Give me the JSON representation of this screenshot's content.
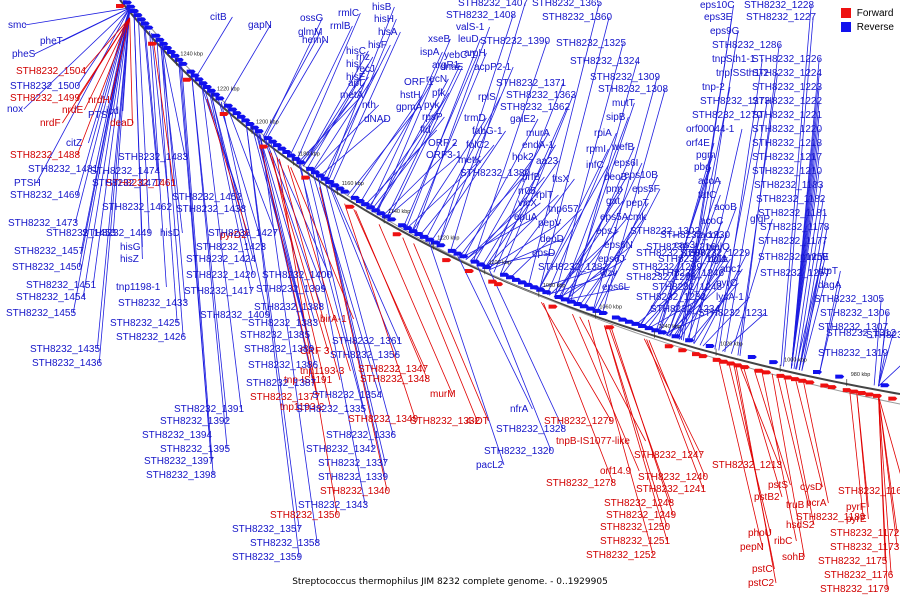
{
  "caption": "Streptococcus thermophilus JIM 8232 complete genome. - 0..1929905",
  "legend": {
    "forward_label": "Forward",
    "reverse_label": "Reverse",
    "forward_color": "#ee1111",
    "reverse_color": "#1111ee"
  },
  "scale_labels": [
    "1240 kbp",
    "1220 kbp",
    "1200 kbp",
    "1180 kbp",
    "1160 kbp",
    "1140 kbp",
    "1120 kbp",
    "1100 kbp",
    "1080 kbp",
    "1060 kbp",
    "1040 kbp",
    "1020 kbp",
    "1000 kbp",
    "980 kbp"
  ],
  "forward_genes": [
    "STH8232_1504",
    "STH8232_1499",
    "nrdH",
    "nrdE",
    "nrdF",
    "deaD",
    "STH8232_1488",
    "STH8232_1461",
    "pyrD2",
    "birA-1",
    "ORF 3",
    "tnp1193-3",
    "tnp-IS1191",
    "STH8232_1377",
    "tnp1193-2",
    "STH8232_1349",
    "STH8232_1347",
    "STH8232_1348",
    "murM",
    "STH8232_1332",
    "STH8232_1340",
    "STH8232_1350",
    "4-OT",
    "STH8232_1279",
    "tnpB-IS1077-like",
    "orf14.9",
    "STH8232_1278",
    "STH8232_1247",
    "STH8232_1240",
    "STH8232_1241",
    "STH8232_1248",
    "STH8232_1249",
    "STH8232_1250",
    "STH8232_1251",
    "STH8232_1252",
    "STH8232_1213",
    "pstS",
    "pstB2",
    "cysD",
    "truB",
    "pcrA",
    "phoU",
    "hsdS2",
    "ribC",
    "STH8232_1189",
    "pepN",
    "sohB",
    "pstC",
    "pstC2",
    "STH8232_1168",
    "pyrF",
    "pyrE",
    "STH8232_1172",
    "STH8232_1173",
    "STH8232_1175",
    "STH8232_1176",
    "STH8232_1179"
  ],
  "reverse_genes": [
    "smc",
    "pheT",
    "pheS",
    "STH8232_1500",
    "nox",
    "icd",
    "PTSI",
    "citZ",
    "STH8232_1481",
    "PTSH",
    "STH8232_1483",
    "STH8232_1474",
    "STH8232_1469",
    "STH8232_1477",
    "STH8232_1452",
    "STH8232_1462",
    "STH8232_1473",
    "STH8232_1438",
    "STH8232_1449",
    "STH8232_1453",
    "STH8232_1427",
    "hisD",
    "hisG",
    "STH8232_1457",
    "STH8232_1423",
    "hisZ",
    "STH8232_1424",
    "STH8232_1450",
    "STH8232_1451",
    "tnp1198-1",
    "STH8232_1420",
    "STH8232_1400",
    "STH8232_1454",
    "STH8232_1433",
    "STH8232_1417",
    "STH8232_1399",
    "STH8232_1455",
    "STH8232_1409",
    "STH8232_1388",
    "STH8232_1425",
    "STH8232_1383",
    "STH8232_1426",
    "STH8232_1385",
    "STH8232_1435",
    "STH8232_1389",
    "STH8232_1436",
    "STH8232_1386",
    "STH8232_1361",
    "STH8232_1356",
    "STH8232_1387",
    "STH8232_1354",
    "STH8232_1391",
    "STH8232_1335",
    "STH8232_1392",
    "STH8232_1336",
    "STH8232_1394",
    "STH8232_1342",
    "STH8232_1395",
    "STH8232_1397",
    "STH8232_1337",
    "STH8232_1398",
    "STH8232_1339",
    "STH8232_1343",
    "STH8232_1357",
    "STH8232_1358",
    "STH8232_1359",
    "citB",
    "gapN",
    "ossG",
    "glmM",
    "rmlC",
    "rmlB",
    "hemN",
    "hisB",
    "hisH",
    "hisA",
    "hisF",
    "hisC",
    "hisI",
    "hisE",
    "rnz",
    "recJ",
    "apt",
    "metA",
    "nth",
    "xseB",
    "ispA",
    "argR1",
    "recN",
    "ORF 1",
    "hstH",
    "gpmA",
    "dNAD",
    "valS-1",
    "leuD",
    "yebC-1",
    "dnaE",
    "pfk",
    "pyk",
    "rpsP",
    "fld",
    "ORF 2",
    "ORF3-1",
    "STH8232_1407",
    "STH8232_1408",
    "STH8232_1390",
    "aroH",
    "acpP2-1",
    "rplS",
    "trmD",
    "fabG-1",
    "folC2",
    "metK",
    "STH8232_1380",
    "STH8232_1371",
    "STH8232_1363",
    "STH8232_1362",
    "galE2",
    "murA",
    "endA-1",
    "hpk2",
    "aa23",
    "prfB",
    "rr05",
    "vicX",
    "epuA",
    "ftsX",
    "rplT",
    "tnp657",
    "pepV",
    "deoD",
    "epsD",
    "STH8232_1382",
    "STH8232_1365",
    "STH8232_1360",
    "STH8232_1325",
    "STH8232_1324",
    "STH8232_1309",
    "STH8232_1308",
    "mutT",
    "sipB",
    "rpiA",
    "rpmI",
    "infC",
    "deoB",
    "pnp",
    "gat",
    "eps5A",
    "epsJ",
    "eps6N",
    "eps6J",
    "wzv",
    "eps6L",
    "eps6I",
    "wefB",
    "eps10B",
    "eps5F",
    "pepT",
    "cmk",
    "STH8232_1302",
    "STH8232_1300",
    "STH8232_1299",
    "STH8232_1298",
    "eps10C",
    "eps3E",
    "eps9G",
    "STH8232_1286",
    "tnpSth1-1",
    "tnpISSth1-2",
    "tnp-2",
    "STH8232_1273",
    "STH8232_1270",
    "orf00044-1",
    "orf4E",
    "pgm",
    "pbg",
    "acoA",
    "tatC",
    "acoB",
    "acoC",
    "acoL",
    "cas3",
    "malQ",
    "glgP",
    "bglA",
    "abc1",
    "pyrC",
    "lysA-1",
    "STH8232_1258",
    "STH8232_1257",
    "STH8232_1216",
    "STH8232_1211",
    "STH8232_1246",
    "STH8232_1243",
    "STH8232_1234",
    "STH8232_1232",
    "STH8232_1231",
    "STH8232_1230",
    "STH8232_1229",
    "STH8232_1228",
    "STH8232_1227",
    "STH8232_1226",
    "STH8232_1224",
    "STH8232_1223",
    "STH8232_1222",
    "STH8232_1221",
    "STH8232_1220",
    "STH8232_1218",
    "STH8232_1217",
    "STH8232_1210",
    "STH8232_1183",
    "STH8232_1182",
    "STH8232_1181",
    "STH8232_1178",
    "STH8232_1177",
    "mnmE",
    "dtpT",
    "dagA",
    "STH8232_1305",
    "STH8232_1306",
    "STH8232_1307",
    "STH8232_1312",
    "STH8232_1313",
    "STH8232_1319",
    "STH8232_1320",
    "STH8232_1328",
    "nfrA",
    "pacL2"
  ]
}
